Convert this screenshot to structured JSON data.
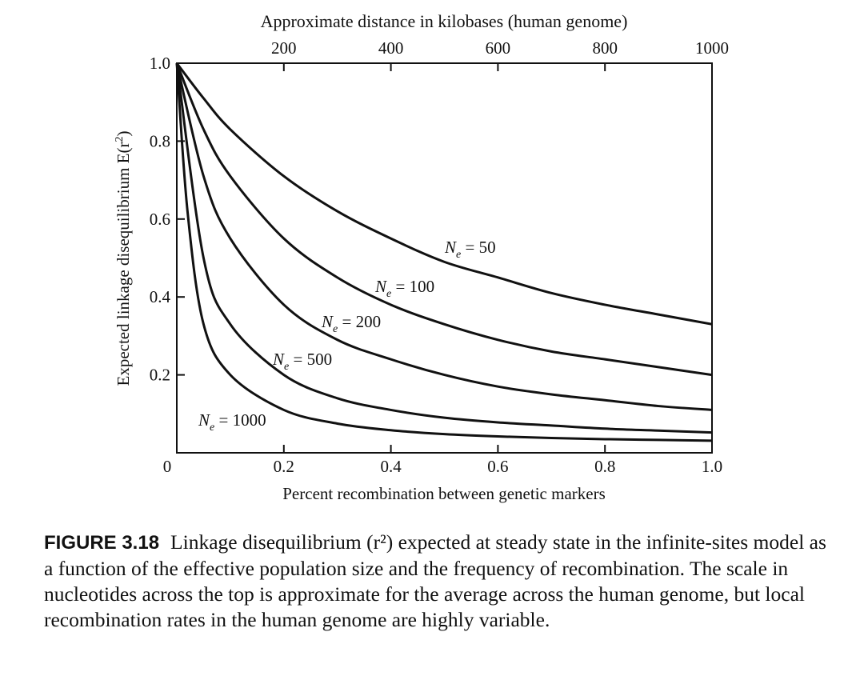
{
  "chart_data": {
    "type": "line",
    "top_axis": {
      "label": "Approximate distance in kilobases (human genome)",
      "ticks": [
        200,
        400,
        600,
        800,
        1000
      ]
    },
    "xlabel": "Percent recombination between genetic markers",
    "ylabel_main": "Expected linkage disequilibrium E(r",
    "ylabel_sup": "2",
    "ylabel_end": ")",
    "xlim": [
      0,
      1.0
    ],
    "ylim": [
      0,
      1.0
    ],
    "x_ticks": [
      "0",
      "0.2",
      "0.4",
      "0.6",
      "0.8",
      "1.0"
    ],
    "y_ticks": [
      "0.2",
      "0.4",
      "0.6",
      "0.8",
      "1.0"
    ],
    "grid": false,
    "series": [
      {
        "name": "Ne = 50",
        "Ne": "50",
        "x": [
          0,
          0.05,
          0.1,
          0.2,
          0.3,
          0.4,
          0.5,
          0.6,
          0.7,
          0.8,
          0.9,
          1.0
        ],
        "values": [
          1.0,
          0.91,
          0.83,
          0.71,
          0.62,
          0.55,
          0.49,
          0.45,
          0.41,
          0.38,
          0.355,
          0.33
        ]
      },
      {
        "name": "Ne = 100",
        "Ne": "100",
        "x": [
          0,
          0.05,
          0.1,
          0.2,
          0.3,
          0.4,
          0.5,
          0.6,
          0.7,
          0.8,
          0.9,
          1.0
        ],
        "values": [
          1.0,
          0.83,
          0.71,
          0.55,
          0.45,
          0.38,
          0.33,
          0.29,
          0.26,
          0.24,
          0.22,
          0.2
        ]
      },
      {
        "name": "Ne = 200",
        "Ne": "200",
        "x": [
          0,
          0.05,
          0.1,
          0.2,
          0.3,
          0.4,
          0.5,
          0.6,
          0.7,
          0.8,
          0.9,
          1.0
        ],
        "values": [
          1.0,
          0.71,
          0.55,
          0.38,
          0.29,
          0.24,
          0.2,
          0.17,
          0.15,
          0.135,
          0.12,
          0.11
        ]
      },
      {
        "name": "Ne = 500",
        "Ne": "500",
        "x": [
          0,
          0.05,
          0.1,
          0.2,
          0.3,
          0.4,
          0.5,
          0.6,
          0.7,
          0.8,
          0.9,
          1.0
        ],
        "values": [
          1.0,
          0.5,
          0.33,
          0.2,
          0.14,
          0.11,
          0.09,
          0.078,
          0.07,
          0.062,
          0.057,
          0.052
        ]
      },
      {
        "name": "Ne = 1000",
        "Ne": "1000",
        "x": [
          0,
          0.02,
          0.05,
          0.1,
          0.2,
          0.3,
          0.4,
          0.5,
          0.6,
          0.7,
          0.8,
          0.9,
          1.0
        ],
        "values": [
          1.0,
          0.62,
          0.33,
          0.2,
          0.11,
          0.075,
          0.058,
          0.048,
          0.042,
          0.038,
          0.035,
          0.033,
          0.031
        ]
      }
    ]
  },
  "caption": {
    "label": "FIGURE 3.18",
    "text": "Linkage disequilibrium (r²) expected at steady state in the infinite-sites model as a function of the effective population size and the frequency of recombination. The scale in nucleotides across the top is approximate for the average across the human genome, but local recombination rates in the human genome are highly variable."
  }
}
